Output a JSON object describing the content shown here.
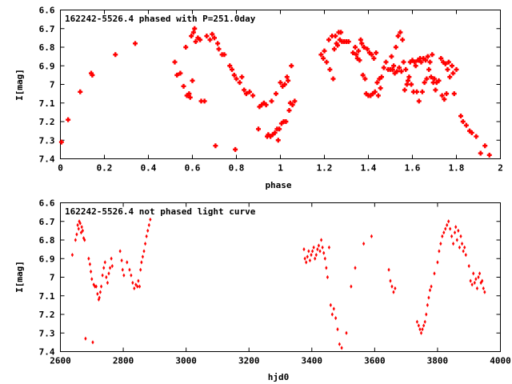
{
  "chart_data": [
    {
      "type": "scatter",
      "title": "162242-5526.4 phased with P=251.0day",
      "xlabel": "phase",
      "ylabel": "I[mag]",
      "xlim": [
        0,
        2
      ],
      "ylim": [
        6.6,
        7.4
      ],
      "y_inverted": true,
      "grid": false,
      "xticks": [
        0,
        0.2,
        0.4,
        0.6,
        0.8,
        1,
        1.2,
        1.4,
        1.6,
        1.8,
        2
      ],
      "yticks": [
        6.6,
        6.7,
        6.8,
        6.9,
        7,
        7.1,
        7.2,
        7.3,
        7.4
      ],
      "color": "#ff0000",
      "marker": "cross",
      "points": [
        [
          0.005,
          7.31
        ],
        [
          0.035,
          7.19
        ],
        [
          0.09,
          7.04
        ],
        [
          0.14,
          6.94
        ],
        [
          0.145,
          6.95
        ],
        [
          0.25,
          6.84
        ],
        [
          0.34,
          6.78
        ],
        [
          0.52,
          6.88
        ],
        [
          0.53,
          6.95
        ],
        [
          0.545,
          6.94
        ],
        [
          0.56,
          7.01
        ],
        [
          0.57,
          6.8
        ],
        [
          0.575,
          7.06
        ],
        [
          0.585,
          7.05
        ],
        [
          0.59,
          7.07
        ],
        [
          0.595,
          6.74
        ],
        [
          0.6,
          6.98
        ],
        [
          0.605,
          6.72
        ],
        [
          0.61,
          6.7
        ],
        [
          0.615,
          6.77
        ],
        [
          0.625,
          6.75
        ],
        [
          0.635,
          6.76
        ],
        [
          0.64,
          7.09
        ],
        [
          0.655,
          7.09
        ],
        [
          0.665,
          6.74
        ],
        [
          0.68,
          6.76
        ],
        [
          0.69,
          6.73
        ],
        [
          0.7,
          6.75
        ],
        [
          0.705,
          7.33
        ],
        [
          0.715,
          6.78
        ],
        [
          0.72,
          6.81
        ],
        [
          0.735,
          6.84
        ],
        [
          0.745,
          6.84
        ],
        [
          0.77,
          6.9
        ],
        [
          0.78,
          6.92
        ],
        [
          0.79,
          6.95
        ],
        [
          0.795,
          7.35
        ],
        [
          0.8,
          6.97
        ],
        [
          0.815,
          6.99
        ],
        [
          0.825,
          6.96
        ],
        [
          0.835,
          7.03
        ],
        [
          0.845,
          7.05
        ],
        [
          0.86,
          7.04
        ],
        [
          0.875,
          7.06
        ],
        [
          0.9,
          7.24
        ],
        [
          0.905,
          7.12
        ],
        [
          0.915,
          7.11
        ],
        [
          0.925,
          7.1
        ],
        [
          0.935,
          7.11
        ],
        [
          0.94,
          7.28
        ],
        [
          0.945,
          7.27
        ],
        [
          0.955,
          7.28
        ],
        [
          0.96,
          7.09
        ],
        [
          0.965,
          7.27
        ],
        [
          0.975,
          7.26
        ],
        [
          0.98,
          7.05
        ],
        [
          0.985,
          7.24
        ],
        [
          0.99,
          7.3
        ],
        [
          0.995,
          7.24
        ],
        [
          1.0,
          6.99
        ],
        [
          1.005,
          7.21
        ],
        [
          1.01,
          7.01
        ],
        [
          1.015,
          7.2
        ],
        [
          1.02,
          7.0
        ],
        [
          1.025,
          7.2
        ],
        [
          1.03,
          6.96
        ],
        [
          1.035,
          6.98
        ],
        [
          1.04,
          7.14
        ],
        [
          1.045,
          7.1
        ],
        [
          1.05,
          6.9
        ],
        [
          1.055,
          7.11
        ],
        [
          1.065,
          7.09
        ],
        [
          1.185,
          6.84
        ],
        [
          1.195,
          6.86
        ],
        [
          1.2,
          6.82
        ],
        [
          1.21,
          6.88
        ],
        [
          1.22,
          6.76
        ],
        [
          1.225,
          6.92
        ],
        [
          1.235,
          6.74
        ],
        [
          1.24,
          6.97
        ],
        [
          1.245,
          6.81
        ],
        [
          1.25,
          6.74
        ],
        [
          1.255,
          6.78
        ],
        [
          1.26,
          6.79
        ],
        [
          1.265,
          6.72
        ],
        [
          1.27,
          6.76
        ],
        [
          1.275,
          6.72
        ],
        [
          1.28,
          6.77
        ],
        [
          1.29,
          6.77
        ],
        [
          1.3,
          6.77
        ],
        [
          1.31,
          6.77
        ],
        [
          1.33,
          6.83
        ],
        [
          1.34,
          6.8
        ],
        [
          1.345,
          6.84
        ],
        [
          1.35,
          6.86
        ],
        [
          1.355,
          6.82
        ],
        [
          1.36,
          6.87
        ],
        [
          1.365,
          6.76
        ],
        [
          1.37,
          6.78
        ],
        [
          1.375,
          6.95
        ],
        [
          1.38,
          6.8
        ],
        [
          1.385,
          6.97
        ],
        [
          1.39,
          7.05
        ],
        [
          1.395,
          6.81
        ],
        [
          1.4,
          7.06
        ],
        [
          1.405,
          6.83
        ],
        [
          1.41,
          7.06
        ],
        [
          1.415,
          6.84
        ],
        [
          1.42,
          7.05
        ],
        [
          1.425,
          6.86
        ],
        [
          1.43,
          7.04
        ],
        [
          1.435,
          6.83
        ],
        [
          1.44,
          6.99
        ],
        [
          1.445,
          7.06
        ],
        [
          1.45,
          6.97
        ],
        [
          1.455,
          7.02
        ],
        [
          1.46,
          6.96
        ],
        [
          1.47,
          6.91
        ],
        [
          1.48,
          6.88
        ],
        [
          1.49,
          6.92
        ],
        [
          1.5,
          6.92
        ],
        [
          1.505,
          6.85
        ],
        [
          1.51,
          6.92
        ],
        [
          1.515,
          6.9
        ],
        [
          1.52,
          6.94
        ],
        [
          1.525,
          6.8
        ],
        [
          1.53,
          6.93
        ],
        [
          1.535,
          6.74
        ],
        [
          1.54,
          6.91
        ],
        [
          1.545,
          6.72
        ],
        [
          1.55,
          6.93
        ],
        [
          1.555,
          6.76
        ],
        [
          1.56,
          6.88
        ],
        [
          1.565,
          7.03
        ],
        [
          1.57,
          6.92
        ],
        [
          1.575,
          7.0
        ],
        [
          1.58,
          6.98
        ],
        [
          1.585,
          6.96
        ],
        [
          1.59,
          6.88
        ],
        [
          1.595,
          7.0
        ],
        [
          1.6,
          6.87
        ],
        [
          1.605,
          7.04
        ],
        [
          1.61,
          6.88
        ],
        [
          1.615,
          6.9
        ],
        [
          1.62,
          7.04
        ],
        [
          1.625,
          6.87
        ],
        [
          1.63,
          7.09
        ],
        [
          1.635,
          6.86
        ],
        [
          1.64,
          6.88
        ],
        [
          1.645,
          7.04
        ],
        [
          1.65,
          6.86
        ],
        [
          1.655,
          6.99
        ],
        [
          1.66,
          6.87
        ],
        [
          1.665,
          6.97
        ],
        [
          1.67,
          6.85
        ],
        [
          1.675,
          6.92
        ],
        [
          1.68,
          6.88
        ],
        [
          1.685,
          6.96
        ],
        [
          1.69,
          6.84
        ],
        [
          1.695,
          6.99
        ],
        [
          1.7,
          6.97
        ],
        [
          1.705,
          7.03
        ],
        [
          1.71,
          6.99
        ],
        [
          1.72,
          6.98
        ],
        [
          1.73,
          6.86
        ],
        [
          1.735,
          7.06
        ],
        [
          1.74,
          6.88
        ],
        [
          1.745,
          7.08
        ],
        [
          1.75,
          6.89
        ],
        [
          1.755,
          7.05
        ],
        [
          1.76,
          6.92
        ],
        [
          1.765,
          6.88
        ],
        [
          1.77,
          6.96
        ],
        [
          1.78,
          6.9
        ],
        [
          1.785,
          6.94
        ],
        [
          1.79,
          7.05
        ],
        [
          1.8,
          6.92
        ],
        [
          1.82,
          7.17
        ],
        [
          1.83,
          7.2
        ],
        [
          1.845,
          7.22
        ],
        [
          1.86,
          7.25
        ],
        [
          1.87,
          7.26
        ],
        [
          1.89,
          7.28
        ],
        [
          1.91,
          7.37
        ],
        [
          1.93,
          7.33
        ],
        [
          1.95,
          7.38
        ]
      ]
    },
    {
      "type": "scatter",
      "title": "162242-5526.4 not phased light curve",
      "xlabel": "hjd0",
      "ylabel": "I[mag]",
      "xlim": [
        2600,
        4000
      ],
      "ylim": [
        6.6,
        7.4
      ],
      "y_inverted": true,
      "grid": false,
      "xticks": [
        2600,
        2800,
        3000,
        3200,
        3400,
        3600,
        3800,
        4000
      ],
      "yticks": [
        6.6,
        6.7,
        6.8,
        6.9,
        7,
        7.1,
        7.2,
        7.3,
        7.4
      ],
      "color": "#ff0000",
      "marker": "dot",
      "points": [
        [
          2638,
          6.88
        ],
        [
          2648,
          6.8
        ],
        [
          2652,
          6.77
        ],
        [
          2655,
          6.72
        ],
        [
          2658,
          6.74
        ],
        [
          2660,
          6.7
        ],
        [
          2663,
          6.71
        ],
        [
          2666,
          6.76
        ],
        [
          2668,
          6.73
        ],
        [
          2671,
          6.75
        ],
        [
          2674,
          6.79
        ],
        [
          2677,
          6.8
        ],
        [
          2680,
          7.33
        ],
        [
          2690,
          6.9
        ],
        [
          2694,
          6.93
        ],
        [
          2697,
          6.97
        ],
        [
          2700,
          7.01
        ],
        [
          2703,
          7.35
        ],
        [
          2706,
          7.04
        ],
        [
          2710,
          7.05
        ],
        [
          2714,
          7.05
        ],
        [
          2718,
          7.09
        ],
        [
          2722,
          7.12
        ],
        [
          2724,
          7.11
        ],
        [
          2727,
          7.08
        ],
        [
          2730,
          7.05
        ],
        [
          2734,
          6.99
        ],
        [
          2738,
          6.95
        ],
        [
          2742,
          6.92
        ],
        [
          2746,
          7.0
        ],
        [
          2750,
          7.03
        ],
        [
          2754,
          6.98
        ],
        [
          2758,
          6.95
        ],
        [
          2762,
          6.9
        ],
        [
          2765,
          6.94
        ],
        [
          2790,
          6.86
        ],
        [
          2795,
          6.91
        ],
        [
          2798,
          6.96
        ],
        [
          2802,
          6.99
        ],
        [
          2812,
          6.92
        ],
        [
          2820,
          6.96
        ],
        [
          2825,
          6.99
        ],
        [
          2830,
          7.03
        ],
        [
          2835,
          7.06
        ],
        [
          2840,
          7.04
        ],
        [
          2845,
          7.05
        ],
        [
          2848,
          7.02
        ],
        [
          2852,
          7.05
        ],
        [
          2855,
          6.96
        ],
        [
          2858,
          6.92
        ],
        [
          2862,
          6.89
        ],
        [
          2866,
          6.86
        ],
        [
          2870,
          6.82
        ],
        [
          2874,
          6.78
        ],
        [
          2878,
          6.75
        ],
        [
          2882,
          6.72
        ],
        [
          2886,
          6.69
        ],
        [
          3375,
          6.85
        ],
        [
          3378,
          6.9
        ],
        [
          3382,
          6.92
        ],
        [
          3386,
          6.89
        ],
        [
          3390,
          6.86
        ],
        [
          3394,
          6.91
        ],
        [
          3398,
          6.88
        ],
        [
          3402,
          6.86
        ],
        [
          3406,
          6.84
        ],
        [
          3410,
          6.9
        ],
        [
          3414,
          6.88
        ],
        [
          3418,
          6.85
        ],
        [
          3422,
          6.83
        ],
        [
          3426,
          6.86
        ],
        [
          3430,
          6.8
        ],
        [
          3434,
          6.84
        ],
        [
          3438,
          6.87
        ],
        [
          3442,
          6.9
        ],
        [
          3446,
          6.95
        ],
        [
          3450,
          7.0
        ],
        [
          3455,
          6.84
        ],
        [
          3460,
          7.15
        ],
        [
          3465,
          7.2
        ],
        [
          3470,
          7.17
        ],
        [
          3476,
          7.22
        ],
        [
          3482,
          7.28
        ],
        [
          3488,
          7.36
        ],
        [
          3495,
          7.38
        ],
        [
          3510,
          7.3
        ],
        [
          3525,
          7.05
        ],
        [
          3538,
          6.95
        ],
        [
          3565,
          6.82
        ],
        [
          3590,
          6.78
        ],
        [
          3645,
          6.96
        ],
        [
          3650,
          7.02
        ],
        [
          3655,
          7.05
        ],
        [
          3660,
          7.08
        ],
        [
          3665,
          7.06
        ],
        [
          3735,
          7.24
        ],
        [
          3740,
          7.26
        ],
        [
          3744,
          7.28
        ],
        [
          3748,
          7.3
        ],
        [
          3752,
          7.28
        ],
        [
          3756,
          7.26
        ],
        [
          3760,
          7.24
        ],
        [
          3764,
          7.2
        ],
        [
          3768,
          7.15
        ],
        [
          3772,
          7.11
        ],
        [
          3776,
          7.07
        ],
        [
          3780,
          7.05
        ],
        [
          3790,
          6.98
        ],
        [
          3800,
          6.92
        ],
        [
          3805,
          6.86
        ],
        [
          3810,
          6.82
        ],
        [
          3815,
          6.78
        ],
        [
          3820,
          6.76
        ],
        [
          3825,
          6.74
        ],
        [
          3830,
          6.72
        ],
        [
          3835,
          6.7
        ],
        [
          3840,
          6.74
        ],
        [
          3845,
          6.78
        ],
        [
          3850,
          6.82
        ],
        [
          3855,
          6.76
        ],
        [
          3858,
          6.73
        ],
        [
          3862,
          6.8
        ],
        [
          3866,
          6.75
        ],
        [
          3870,
          6.84
        ],
        [
          3874,
          6.78
        ],
        [
          3878,
          6.82
        ],
        [
          3882,
          6.86
        ],
        [
          3886,
          6.84
        ],
        [
          3890,
          6.88
        ],
        [
          3900,
          6.94
        ],
        [
          3905,
          7.02
        ],
        [
          3910,
          7.04
        ],
        [
          3914,
          6.98
        ],
        [
          3918,
          7.03
        ],
        [
          3922,
          7.01
        ],
        [
          3926,
          7.06
        ],
        [
          3930,
          7.0
        ],
        [
          3934,
          6.98
        ],
        [
          3938,
          7.03
        ],
        [
          3942,
          7.02
        ],
        [
          3946,
          7.06
        ],
        [
          3950,
          7.08
        ]
      ]
    }
  ]
}
